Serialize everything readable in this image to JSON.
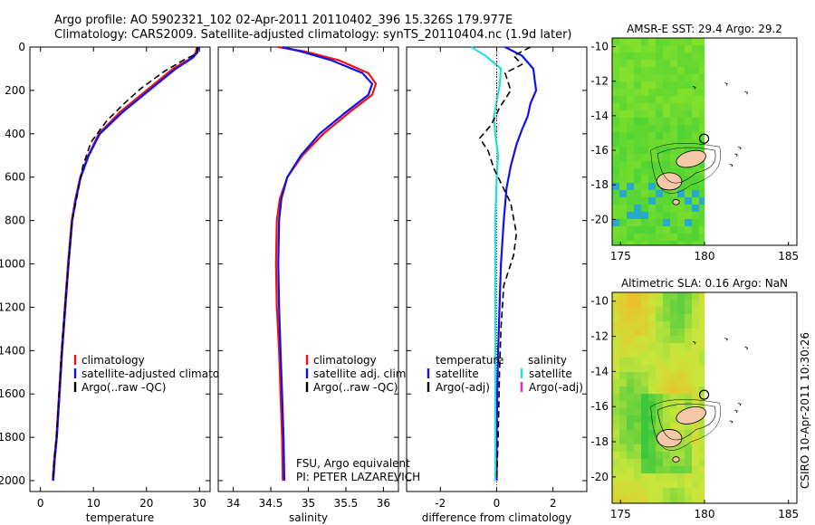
{
  "header": {
    "title_line1": "Argo profile: AO 5902321_102 02-Apr-2011 20110402_396 15.326S 179.977E",
    "title_line2": "Climatology: CARS2009. Satellite-adjusted climatology: synTS_20110404.nc (1.9d later)"
  },
  "footer": {
    "credit": "CSIRO 10-Apr-2011 10:30:26",
    "note_line1": "FSU, Argo equivalent",
    "note_line2": "PI: PETER LAZAREVICH"
  },
  "colors": {
    "climatology": "#ee1111",
    "satellite": "#1111ee",
    "argo": "#000000",
    "satellite_diff": "#22e0e0",
    "argo_adj_sal": "#e020e0"
  },
  "chart_data": [
    {
      "id": "temperature",
      "type": "line",
      "xlabel": "temperature",
      "xlim": [
        -2,
        32
      ],
      "xticks": [
        0,
        10,
        20,
        30
      ],
      "ylim": [
        0,
        2050
      ],
      "yticks": [
        0,
        200,
        400,
        600,
        800,
        1000,
        1200,
        1400,
        1600,
        1800,
        2000
      ],
      "legend": [
        "climatology",
        "satellite-adjusted climatology",
        "Argo(..raw -QC)"
      ],
      "series": [
        {
          "name": "climatology",
          "color_key": "climatology",
          "x": [
            29.5,
            29.3,
            28.5,
            25.0,
            20.0,
            15.0,
            11.0,
            9.0,
            7.5,
            6.6,
            5.9,
            5.2,
            4.6,
            4.0,
            3.5,
            3.0,
            2.6,
            2.3
          ],
          "depth": [
            0,
            25,
            50,
            100,
            200,
            300,
            400,
            500,
            600,
            700,
            800,
            1000,
            1200,
            1400,
            1600,
            1800,
            1900,
            2000
          ]
        },
        {
          "name": "satellite-adjusted climatology",
          "color_key": "satellite",
          "x": [
            29.8,
            29.6,
            28.7,
            25.5,
            20.5,
            15.5,
            11.2,
            9.1,
            7.6,
            6.7,
            6.0,
            5.3,
            4.7,
            4.1,
            3.6,
            3.1,
            2.7,
            2.4
          ],
          "depth": [
            0,
            25,
            50,
            100,
            200,
            300,
            400,
            500,
            600,
            700,
            800,
            1000,
            1200,
            1400,
            1600,
            1800,
            1900,
            2000
          ]
        },
        {
          "name": "Argo(..raw -QC)",
          "color_key": "argo",
          "dashed": true,
          "x": [
            29.6,
            29.5,
            27.0,
            23.5,
            19.0,
            15.8,
            12.5,
            9.5,
            8.0,
            6.8,
            6.0,
            5.3,
            4.6,
            4.0,
            3.5,
            3.0,
            2.6,
            2.3
          ],
          "depth": [
            0,
            30,
            60,
            110,
            190,
            260,
            340,
            440,
            550,
            700,
            800,
            1000,
            1200,
            1400,
            1600,
            1800,
            1900,
            2000
          ]
        }
      ]
    },
    {
      "id": "salinity",
      "type": "line",
      "xlabel": "salinity",
      "xlim": [
        33.8,
        36.2
      ],
      "xticks": [
        34,
        34.5,
        35,
        35.5,
        36
      ],
      "xticklabels": [
        "34",
        "34.5",
        "35",
        "35.5",
        "36"
      ],
      "ylim": [
        0,
        2050
      ],
      "legend": [
        "climatology",
        "satellite adj. clim.",
        "Argo(..raw -QC)"
      ],
      "series": [
        {
          "name": "climatology",
          "color_key": "climatology",
          "x": [
            34.6,
            34.95,
            35.4,
            35.8,
            35.9,
            35.85,
            35.55,
            35.2,
            34.92,
            34.72,
            34.62,
            34.58,
            34.57,
            34.58,
            34.61,
            34.63,
            34.65,
            34.66
          ],
          "depth": [
            0,
            20,
            60,
            120,
            170,
            220,
            300,
            400,
            500,
            600,
            700,
            800,
            1000,
            1200,
            1400,
            1600,
            1800,
            2000
          ]
        },
        {
          "name": "satellite adj. clim.",
          "color_key": "satellite",
          "x": [
            34.65,
            34.9,
            35.3,
            35.72,
            35.85,
            35.8,
            35.5,
            35.15,
            34.9,
            34.72,
            34.64,
            34.61,
            34.6,
            34.61,
            34.63,
            34.65,
            34.67,
            34.68
          ],
          "depth": [
            0,
            20,
            60,
            120,
            170,
            220,
            300,
            400,
            500,
            600,
            700,
            800,
            1000,
            1200,
            1400,
            1600,
            1800,
            2000
          ]
        }
      ]
    },
    {
      "id": "difference",
      "type": "line",
      "xlabel": "difference from climatology",
      "xlim": [
        -3.2,
        3.2
      ],
      "xticks": [
        -2,
        0,
        2
      ],
      "ylim": [
        0,
        2050
      ],
      "legend_headers": [
        "temperature",
        "salinity"
      ],
      "legend": [
        "satellite",
        "Argo(-adj)",
        "satellite",
        "Argo(-adj)"
      ],
      "series": [
        {
          "name": "temperature satellite",
          "color_key": "satellite",
          "x": [
            0.3,
            0.9,
            1.3,
            1.4,
            1.2,
            1.1,
            0.9,
            0.7,
            0.5,
            0.35,
            0.25,
            0.15,
            0.1,
            0.05,
            0.02,
            0.0,
            0.0
          ],
          "depth": [
            0,
            40,
            100,
            200,
            260,
            320,
            380,
            450,
            550,
            650,
            800,
            1000,
            1200,
            1400,
            1600,
            1800,
            2000
          ]
        },
        {
          "name": "salinity satellite",
          "color_key": "satellite_diff",
          "x": [
            -0.9,
            -0.4,
            0.15,
            0.1,
            0.0,
            -0.1,
            -0.05,
            0.05,
            0.0,
            -0.05,
            -0.05,
            -0.05,
            -0.05,
            -0.05,
            -0.05,
            -0.05,
            -0.05
          ],
          "depth": [
            0,
            40,
            100,
            180,
            250,
            320,
            400,
            500,
            600,
            800,
            1000,
            1200,
            1400,
            1600,
            1800,
            1900,
            2000
          ]
        },
        {
          "name": "temperature Argo(-adj)",
          "color_key": "argo",
          "dashed": true,
          "x": [
            1.2,
            0.6,
            0.9,
            0.3,
            0.5,
            0.1,
            -0.2,
            -0.6,
            -0.3,
            -0.1,
            0.2,
            0.5,
            0.7,
            0.6,
            0.25,
            0.15,
            0.1,
            0.05,
            0.0
          ],
          "depth": [
            0,
            40,
            80,
            120,
            200,
            280,
            360,
            420,
            480,
            560,
            640,
            720,
            860,
            960,
            1100,
            1300,
            1500,
            1800,
            2000
          ]
        },
        {
          "name": "salinity Argo(-adj)",
          "color_key": "argo",
          "dotted": true,
          "x": [
            0.0,
            0.0,
            0.0
          ],
          "depth": [
            0,
            200,
            400
          ]
        }
      ]
    },
    {
      "id": "sst_map",
      "type": "heatmap",
      "title": "AMSR-E SST: 29.4 Argo: 29.2",
      "xlim": [
        174.5,
        185.5
      ],
      "ylim": [
        -21.5,
        -9.5
      ],
      "xticks": [
        175,
        180,
        185
      ],
      "yticks": [
        -10,
        -12,
        -14,
        -16,
        -18,
        -20
      ],
      "argo_position": {
        "lon": 179.977,
        "lat": -15.326
      }
    },
    {
      "id": "sla_map",
      "type": "heatmap",
      "title": "Altimetric SLA: 0.16 Argo: NaN",
      "xlim": [
        174.5,
        185.5
      ],
      "ylim": [
        -21.5,
        -9.5
      ],
      "xticks": [
        175,
        180,
        185
      ],
      "yticks": [
        -10,
        -12,
        -14,
        -16,
        -18,
        -20
      ],
      "argo_position": {
        "lon": 179.977,
        "lat": -15.326
      }
    }
  ]
}
